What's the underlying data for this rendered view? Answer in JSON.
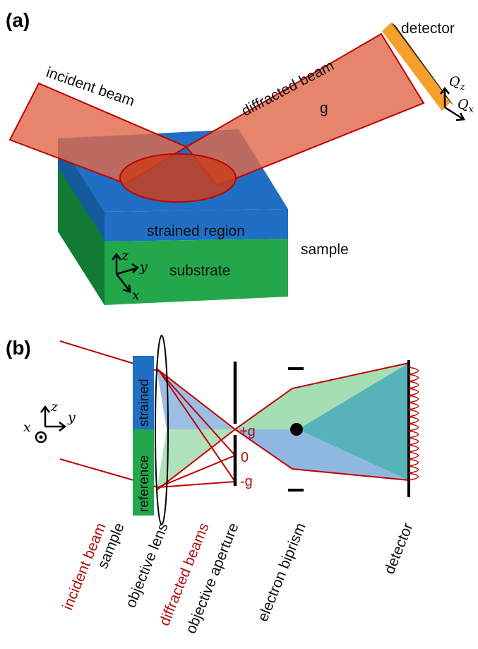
{
  "panel_a": {
    "panel_label": "(a)",
    "incident_beam_label": "incident beam",
    "diffracted_beam_label": "diffracted beam",
    "g_label": "g",
    "detector_label": "detector",
    "qz_label": "Q",
    "qz_sub": "z",
    "qx_label": "Q",
    "qx_sub": "x",
    "strained_region_label": "strained region",
    "substrate_label": "substrate",
    "sample_label": "sample",
    "axis_z": "z",
    "axis_y": "y",
    "axis_x": "x",
    "colors": {
      "beam_fill": "#e06a4a",
      "beam_stroke": "#c00000",
      "strained_layer": "#1f6fc4",
      "substrate_front": "#22a84a",
      "substrate_side": "#117a33",
      "detector": "#f5a02a"
    }
  },
  "panel_b": {
    "panel_label": "(b)",
    "axis_x": "x",
    "axis_z": "z",
    "axis_y": "y",
    "strained_label": "strained",
    "reference_label": "reference",
    "plus_g": "+g",
    "zero": "0",
    "minus_g": "-g",
    "bottom_labels": {
      "incident_beam": "incident beam",
      "sample": "sample",
      "objective_lens": "objective lens",
      "diffracted_beams": "diffracted beams",
      "objective_aperture": "objective aperture",
      "electron_biprism": "electron biprism",
      "detector": "detector"
    },
    "colors": {
      "strained_box": "#1f6fc4",
      "reference_box": "#22a84a",
      "blue_beam": "#8fb8e0",
      "green_beam": "#a6deb4",
      "overlap": "#57b3ba",
      "red": "#c00000"
    }
  }
}
